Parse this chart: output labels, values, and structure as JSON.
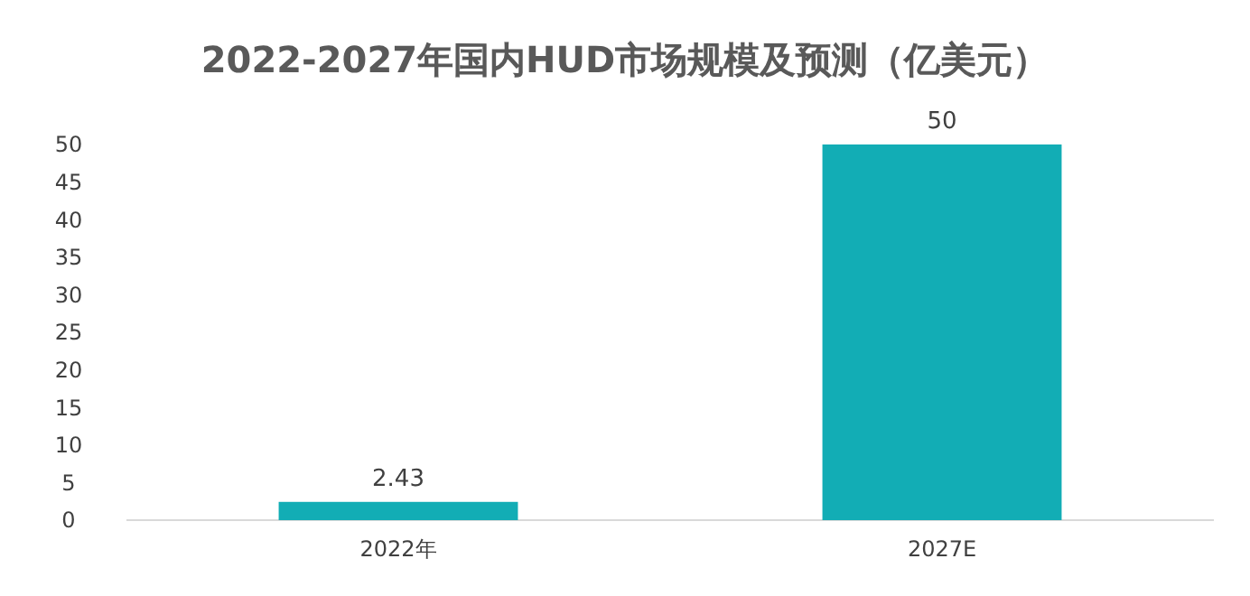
{
  "chart_data": {
    "type": "bar",
    "title": "2022-2027年国内HUD市场规模及预测（亿美元）",
    "categories": [
      "2022年",
      "2027E"
    ],
    "values": [
      2.43,
      50
    ],
    "color": "#12adb5",
    "ylim": [
      0,
      50
    ],
    "yticks": [
      0,
      5,
      10,
      15,
      20,
      25,
      30,
      35,
      40,
      45,
      50
    ],
    "grid": false,
    "data_labels": true
  }
}
